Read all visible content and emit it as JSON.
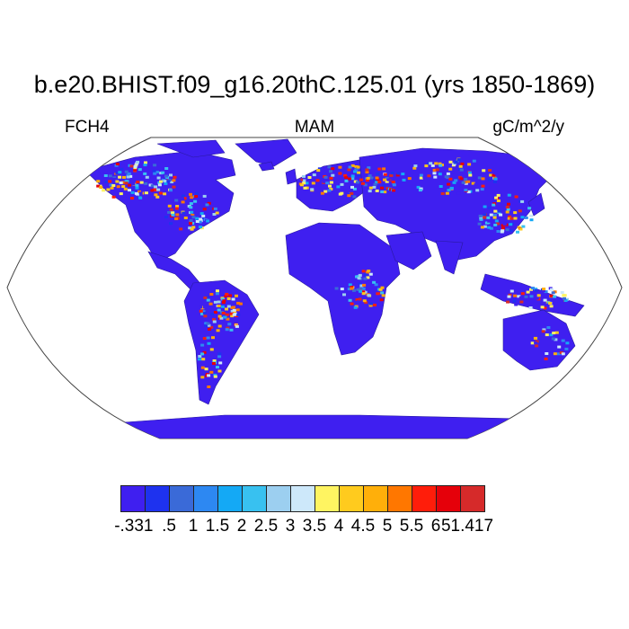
{
  "map": {
    "title": "b.e20.BHIST.f09_g16.20thC.125.01 (yrs 1850-1869)",
    "variable": "FCH4",
    "season": "MAM",
    "units": "gC/m^2/y",
    "projection": "robinson",
    "background": "#ffffff",
    "land_base_color": "#3f1ff0",
    "colorbar": {
      "colors": [
        "#3f1ff0",
        "#1e32ef",
        "#3a6ad8",
        "#2d88f2",
        "#14a9f5",
        "#38c1f0",
        "#9ccff0",
        "#cde8fa",
        "#fff461",
        "#ffcb1e",
        "#ffaf0a",
        "#ff7700",
        "#ff1d0a",
        "#e5000a",
        "#d62a2a"
      ],
      "labels": [
        "-.331",
        ".5",
        "1",
        "1.5",
        "2",
        "2.5",
        "3",
        "3.5",
        "4",
        "4.5",
        "5",
        "5.5",
        "6",
        "51.417"
      ]
    }
  }
}
